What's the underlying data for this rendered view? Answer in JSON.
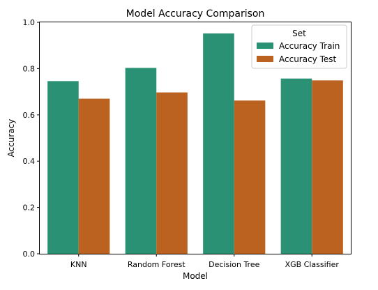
{
  "chart_data": {
    "type": "bar",
    "title": "Model Accuracy Comparison",
    "xlabel": "Model",
    "ylabel": "Accuracy",
    "categories": [
      "KNN",
      "Random Forest",
      "Decision Tree",
      "XGB Classifier"
    ],
    "series": [
      {
        "name": "Accuracy Train",
        "values": [
          0.746,
          0.803,
          0.952,
          0.757
        ],
        "color": "#2a9175"
      },
      {
        "name": "Accuracy Test",
        "values": [
          0.67,
          0.697,
          0.662,
          0.749
        ],
        "color": "#bc6220"
      }
    ],
    "ylim": [
      0,
      1.0
    ],
    "yticks": [
      "0.0",
      "0.2",
      "0.4",
      "0.6",
      "0.8",
      "1.0"
    ],
    "ytick_values": [
      0,
      0.2,
      0.4,
      0.6,
      0.8,
      1.0
    ],
    "grid": false,
    "legend": {
      "title": "Set",
      "placement": "top-right"
    }
  }
}
